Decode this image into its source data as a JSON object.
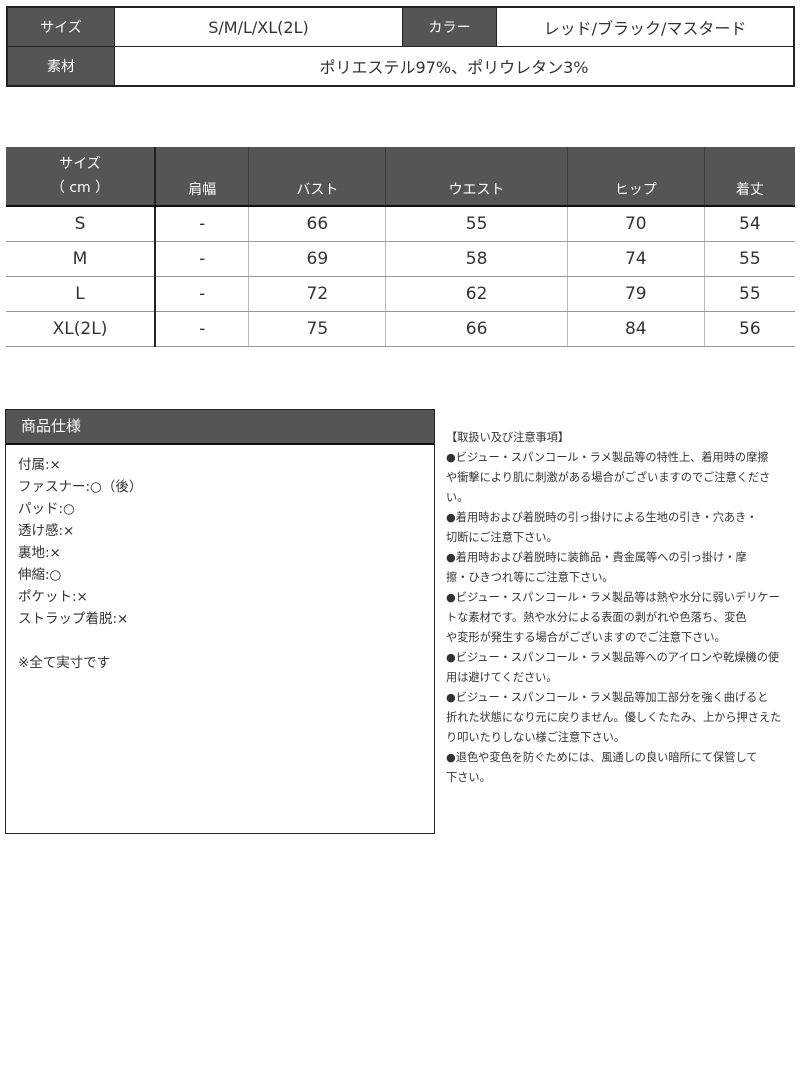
{
  "info": {
    "size_label": "サイズ",
    "size_value": "S/M/L/XL(2L)",
    "color_label": "カラー",
    "color_value": "レッド/ブラック/マスタード",
    "material_label": "素材",
    "material_value": "ポリエステル97%、ポリウレタン3%"
  },
  "size_table": {
    "header_line1": "サイズ",
    "header_line2": "（ cm ）",
    "columns": [
      "肩幅",
      "バスト",
      "ウエスト",
      "ヒップ",
      "着丈"
    ],
    "rows": [
      [
        "S",
        "-",
        "66",
        "55",
        "70",
        "54"
      ],
      [
        "M",
        "-",
        "69",
        "58",
        "74",
        "55"
      ],
      [
        "L",
        "-",
        "72",
        "62",
        "79",
        "55"
      ],
      [
        "XL(2L)",
        "-",
        "75",
        "66",
        "84",
        "56"
      ]
    ]
  },
  "spec": {
    "title": "商品仕様",
    "items": [
      "付属:×",
      "ファスナー:○（後）",
      "パッド:○",
      "透け感:×",
      "裏地:×",
      "伸縮:○",
      "ポケット:×",
      "ストラップ着脱:×"
    ],
    "note": "※全て実寸です"
  },
  "notes": {
    "lines": [
      "【取扱い及び注意事項】",
      "●ビジュー・スパンコール・ラメ製品等の特性上、着用時の摩擦",
      "や衝撃により肌に刺激がある場合がございますのでご注意くださ",
      "い。",
      "●着用時および着脱時の引っ掛けによる生地の引き・穴あき・",
      "切断にご注意下さい。",
      "●着用時および着脱時に装飾品・貴金属等への引っ掛け・摩",
      "擦・ひきつれ等にご注意下さい。",
      "●ビジュー・スパンコール・ラメ製品等は熱や水分に弱いデリケー",
      "トな素材です。熱や水分による表面の剥がれや色落ち、変色",
      "や変形が発生する場合がございますのでご注意下さい。",
      "●ビジュー・スパンコール・ラメ製品等へのアイロンや乾燥機の使",
      "用は避けてください。",
      "●ビジュー・スパンコール・ラメ製品等加工部分を強く曲げると",
      "折れた状態になり元に戻りません。優しくたたみ、上から押さえた",
      "り叩いたりしない様ご注意下さい。",
      "●退色や変色を防ぐためには、風通しの良い暗所にて保管して",
      "下さい。"
    ]
  }
}
